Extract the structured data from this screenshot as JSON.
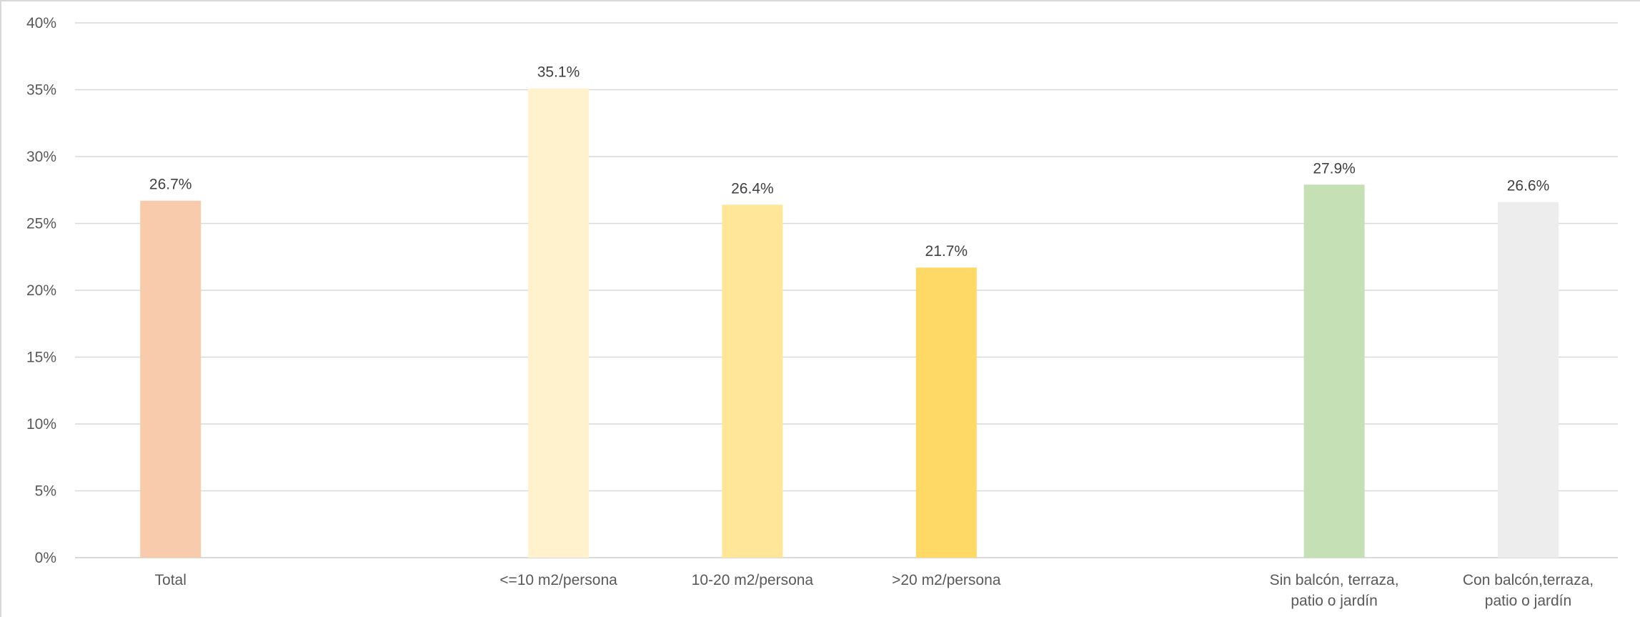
{
  "chart_data": {
    "type": "bar",
    "title": "",
    "xlabel": "",
    "ylabel": "",
    "ylim": [
      0,
      40
    ],
    "y_ticks": [
      "0%",
      "5%",
      "10%",
      "15%",
      "20%",
      "25%",
      "30%",
      "35%",
      "40%"
    ],
    "y_tick_values": [
      0,
      5,
      10,
      15,
      20,
      25,
      30,
      35,
      40
    ],
    "grid": true,
    "legend": "none",
    "categories": [
      [
        "Total"
      ],
      [
        ""
      ],
      [
        "<=10 m2/persona"
      ],
      [
        "10-20 m2/persona"
      ],
      [
        ">20 m2/persona"
      ],
      [
        ""
      ],
      [
        "Sin balcón, terraza,",
        "patio o jardín"
      ],
      [
        "Con balcón,terraza,",
        "patio o jardín"
      ]
    ],
    "values": [
      26.7,
      null,
      35.1,
      26.4,
      21.7,
      null,
      27.9,
      26.6
    ],
    "value_labels": [
      "26.7%",
      "",
      "35.1%",
      "26.4%",
      "21.7%",
      "",
      "27.9%",
      "26.6%"
    ],
    "colors": [
      "#f8cbad",
      "",
      "#fff2cc",
      "#ffe699",
      "#ffd966",
      "",
      "#c5e0b4",
      "#ededed"
    ]
  }
}
